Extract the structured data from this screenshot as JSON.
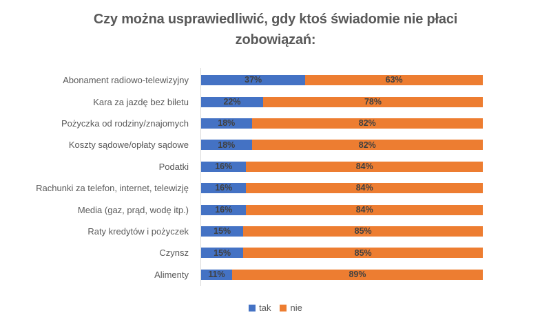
{
  "title": {
    "line1": "Czy można usprawiedliwić, gdy ktoś świadomie nie płaci",
    "line2": "zobowiązań:"
  },
  "chart_data": {
    "type": "bar",
    "orientation": "horizontal",
    "stacked": true,
    "title": "Czy można usprawiedliwić, gdy ktoś świadomie nie płaci zobowiązań:",
    "categories": [
      "Abonament radiowo-telewizyjny",
      "Kara za jazdę bez biletu",
      "Pożyczka od rodziny/znajomych",
      "Koszty sądowe/opłaty sądowe",
      "Podatki",
      "Rachunki za telefon, internet, telewizję",
      "Media (gaz, prąd, wodę itp.)",
      "Raty kredytów i pożyczek",
      "Czynsz",
      "Alimenty"
    ],
    "series": [
      {
        "name": "tak",
        "color": "#4472C4",
        "values": [
          37,
          22,
          18,
          18,
          16,
          16,
          16,
          15,
          15,
          11
        ]
      },
      {
        "name": "nie",
        "color": "#ED7D31",
        "values": [
          63,
          78,
          82,
          82,
          84,
          84,
          84,
          85,
          85,
          89
        ]
      }
    ],
    "value_suffix": "%",
    "xlim": [
      0,
      100
    ],
    "data_labels": true,
    "legend_position": "bottom",
    "grid": false
  },
  "colors": {
    "title_text": "#595959",
    "category_text": "#595959",
    "data_label_text": "#404040",
    "axis_line": "#D9D9D9"
  }
}
